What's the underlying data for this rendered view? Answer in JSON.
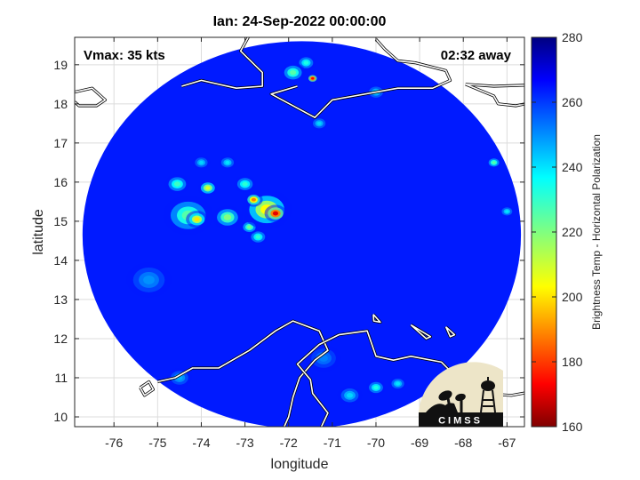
{
  "chart_data": {
    "type": "heatmap",
    "title": "Ian: 24-Sep-2022 00:00:00",
    "annotations": {
      "vmax": "Vmax: 35 kts",
      "time_away": "02:32 away"
    },
    "xlabel": "longitude",
    "ylabel": "latitude",
    "xlim": [
      -76.9,
      -66.6
    ],
    "ylim": [
      9.75,
      19.7
    ],
    "x_ticks": [
      -76,
      -75,
      -74,
      -73,
      -72,
      -71,
      -70,
      -69,
      -68,
      -67
    ],
    "y_ticks": [
      10,
      11,
      12,
      13,
      14,
      15,
      16,
      17,
      18,
      19
    ],
    "x_tick_labels": [
      "-76",
      "-75",
      "-74",
      "-73",
      "-72",
      "-71",
      "-70",
      "-69",
      "-68",
      "-67"
    ],
    "y_tick_labels": [
      "10",
      "11",
      "12",
      "13",
      "14",
      "15",
      "16",
      "17",
      "18",
      "19"
    ],
    "grid": true,
    "colorbar": {
      "label": "Brightness Temp - Horizontal Polarization",
      "range": [
        160,
        280
      ],
      "ticks": [
        160,
        180,
        200,
        220,
        240,
        260,
        280
      ],
      "tick_labels": [
        "160",
        "180",
        "200",
        "220",
        "240",
        "260",
        "280"
      ],
      "colormap": "jet"
    },
    "background_value": 262,
    "swath": {
      "center": [
        -71.7,
        14.65
      ],
      "half_width_deg": 5.02,
      "half_height_deg": 4.95
    },
    "features": [
      {
        "lon": -72.3,
        "lat": 15.2,
        "value": 172,
        "spread": 0.22
      },
      {
        "lon": -72.8,
        "lat": 15.55,
        "value": 190,
        "spread": 0.18
      },
      {
        "lon": -72.5,
        "lat": 15.3,
        "value": 205,
        "spread": 0.5
      },
      {
        "lon": -74.1,
        "lat": 15.05,
        "value": 202,
        "spread": 0.22
      },
      {
        "lon": -74.3,
        "lat": 15.15,
        "value": 225,
        "spread": 0.5
      },
      {
        "lon": -73.85,
        "lat": 15.85,
        "value": 210,
        "spread": 0.2
      },
      {
        "lon": -73.4,
        "lat": 15.1,
        "value": 220,
        "spread": 0.3
      },
      {
        "lon": -73.0,
        "lat": 15.95,
        "value": 230,
        "spread": 0.22
      },
      {
        "lon": -74.55,
        "lat": 15.95,
        "value": 228,
        "spread": 0.25
      },
      {
        "lon": -73.4,
        "lat": 16.5,
        "value": 238,
        "spread": 0.18
      },
      {
        "lon": -74.0,
        "lat": 16.5,
        "value": 240,
        "spread": 0.18
      },
      {
        "lon": -72.7,
        "lat": 14.6,
        "value": 230,
        "spread": 0.2
      },
      {
        "lon": -72.9,
        "lat": 14.85,
        "value": 222,
        "spread": 0.18
      },
      {
        "lon": -71.45,
        "lat": 18.65,
        "value": 175,
        "spread": 0.12
      },
      {
        "lon": -71.9,
        "lat": 18.8,
        "value": 225,
        "spread": 0.25
      },
      {
        "lon": -71.6,
        "lat": 19.05,
        "value": 232,
        "spread": 0.2
      },
      {
        "lon": -71.3,
        "lat": 17.5,
        "value": 240,
        "spread": 0.18
      },
      {
        "lon": -70.0,
        "lat": 18.3,
        "value": 240,
        "spread": 0.2
      },
      {
        "lon": -67.3,
        "lat": 16.5,
        "value": 225,
        "spread": 0.15
      },
      {
        "lon": -67.0,
        "lat": 15.25,
        "value": 238,
        "spread": 0.15
      },
      {
        "lon": -70.0,
        "lat": 10.75,
        "value": 232,
        "spread": 0.2
      },
      {
        "lon": -69.5,
        "lat": 10.85,
        "value": 238,
        "spread": 0.18
      },
      {
        "lon": -70.6,
        "lat": 10.55,
        "value": 240,
        "spread": 0.25
      },
      {
        "lon": -75.2,
        "lat": 13.5,
        "value": 248,
        "spread": 0.45
      },
      {
        "lon": -74.5,
        "lat": 11.0,
        "value": 245,
        "spread": 0.25
      },
      {
        "lon": -71.2,
        "lat": 11.5,
        "value": 250,
        "spread": 0.35
      }
    ],
    "coastlines": [
      [
        [
          -76.9,
          18.3
        ],
        [
          -76.5,
          18.4
        ],
        [
          -76.2,
          18.1
        ],
        [
          -76.4,
          17.95
        ],
        [
          -76.8,
          17.95
        ],
        [
          -76.9,
          18.05
        ]
      ],
      [
        [
          -74.45,
          18.45
        ],
        [
          -74.0,
          18.6
        ],
        [
          -73.2,
          18.4
        ],
        [
          -72.6,
          18.45
        ],
        [
          -72.6,
          18.8
        ],
        [
          -73.1,
          19.35
        ],
        [
          -72.8,
          19.95
        ]
      ],
      [
        [
          -71.8,
          18.45
        ],
        [
          -72.4,
          18.25
        ],
        [
          -71.4,
          17.65
        ],
        [
          -71.0,
          18.1
        ],
        [
          -70.5,
          18.2
        ],
        [
          -69.5,
          18.4
        ],
        [
          -69.0,
          18.4
        ],
        [
          -68.7,
          18.4
        ],
        [
          -68.3,
          18.6
        ],
        [
          -68.4,
          18.85
        ],
        [
          -69.1,
          19.05
        ],
        [
          -69.5,
          19.1
        ],
        [
          -69.8,
          19.4
        ],
        [
          -70.0,
          19.65
        ]
      ],
      [
        [
          -67.95,
          18.5
        ],
        [
          -67.3,
          18.45
        ],
        [
          -65.9,
          18.5
        ],
        [
          -65.7,
          18.2
        ],
        [
          -66.8,
          17.95
        ],
        [
          -67.2,
          18.0
        ],
        [
          -67.3,
          18.2
        ],
        [
          -67.95,
          18.5
        ]
      ],
      [
        [
          -75.0,
          10.9
        ],
        [
          -74.6,
          11.0
        ],
        [
          -74.2,
          11.25
        ],
        [
          -73.6,
          11.25
        ],
        [
          -72.9,
          11.7
        ],
        [
          -72.3,
          12.2
        ],
        [
          -71.9,
          12.45
        ],
        [
          -71.3,
          12.2
        ],
        [
          -71.1,
          11.7
        ],
        [
          -71.4,
          11.45
        ],
        [
          -71.75,
          11.0
        ],
        [
          -71.9,
          10.5
        ],
        [
          -72.0,
          10.0
        ],
        [
          -72.1,
          9.75
        ]
      ],
      [
        [
          -71.25,
          9.75
        ],
        [
          -71.1,
          10.1
        ],
        [
          -71.45,
          10.6
        ],
        [
          -71.5,
          10.95
        ],
        [
          -71.8,
          11.35
        ],
        [
          -71.3,
          11.85
        ],
        [
          -70.85,
          12.1
        ],
        [
          -70.2,
          12.2
        ],
        [
          -70.0,
          11.55
        ],
        [
          -69.6,
          11.45
        ],
        [
          -69.2,
          11.55
        ],
        [
          -68.5,
          11.4
        ],
        [
          -68.1,
          10.95
        ],
        [
          -67.6,
          10.6
        ],
        [
          -66.9,
          10.55
        ],
        [
          -66.4,
          10.65
        ]
      ],
      [
        [
          -70.06,
          12.62
        ],
        [
          -69.9,
          12.42
        ],
        [
          -70.05,
          12.45
        ],
        [
          -70.06,
          12.62
        ]
      ],
      [
        [
          -69.2,
          12.35
        ],
        [
          -68.75,
          12.05
        ],
        [
          -68.85,
          12.0
        ],
        [
          -69.2,
          12.35
        ]
      ],
      [
        [
          -68.4,
          12.3
        ],
        [
          -68.2,
          12.1
        ],
        [
          -68.3,
          12.05
        ],
        [
          -68.4,
          12.3
        ]
      ],
      [
        [
          -75.4,
          10.75
        ],
        [
          -75.2,
          10.9
        ],
        [
          -75.1,
          10.7
        ],
        [
          -75.3,
          10.55
        ],
        [
          -75.4,
          10.75
        ]
      ]
    ]
  }
}
